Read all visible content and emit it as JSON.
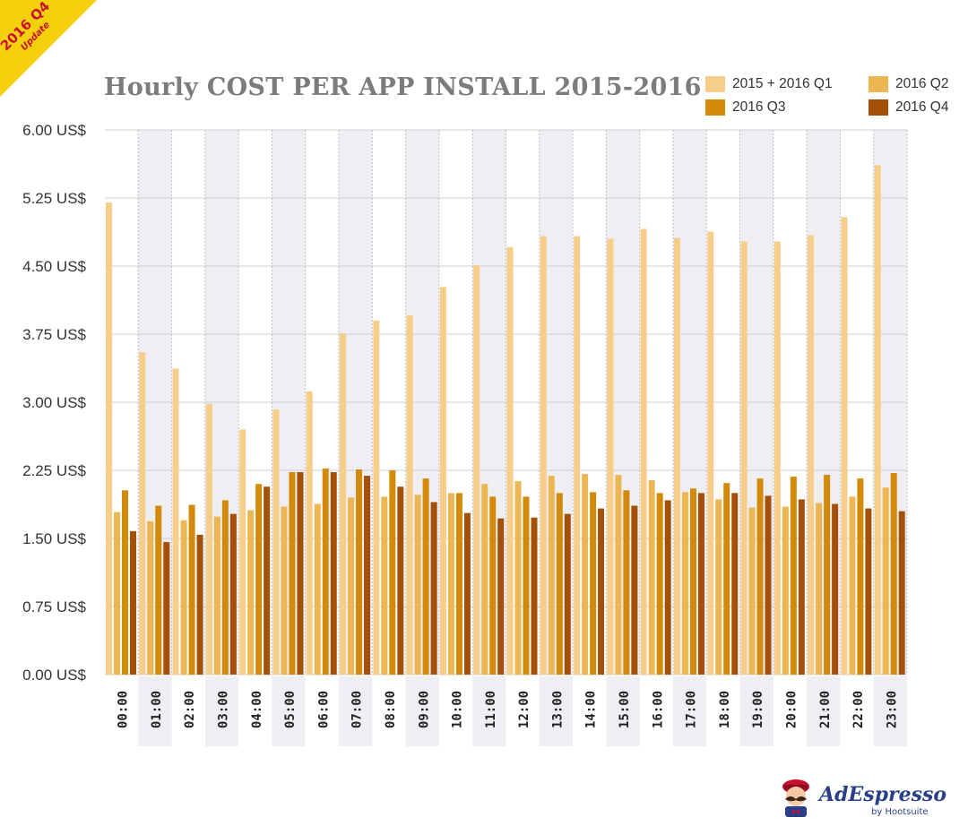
{
  "badge": {
    "line1": "2016 Q4",
    "line2": "Update"
  },
  "logo": {
    "name": "AdEspresso",
    "byline": "by Hootsuite"
  },
  "colors": {
    "series": [
      "#f7cd8a",
      "#ecb653",
      "#d28a08",
      "#a45009"
    ],
    "band": "#efeef2",
    "grid": "#cfcfcf",
    "badge": "#f5d10d",
    "badge_text": "#c8102e",
    "logo_text": "#2a3f8a",
    "title": "#7c7c7c"
  },
  "chart_data": {
    "type": "bar",
    "title": "Hourly COST PER APP INSTALL 2015-2016",
    "xlabel": "",
    "ylabel": "",
    "ylim": [
      0,
      6
    ],
    "y_ticks": [
      "0.00 US$",
      "0.75 US$",
      "1.50 US$",
      "2.25 US$",
      "3.00 US$",
      "3.75 US$",
      "4.50 US$",
      "5.25 US$",
      "6.00 US$"
    ],
    "y_tick_values": [
      0,
      0.75,
      1.5,
      2.25,
      3.0,
      3.75,
      4.5,
      5.25,
      6.0
    ],
    "grid": true,
    "legend_position": "top-right",
    "categories": [
      "00:00",
      "01:00",
      "02:00",
      "03:00",
      "04:00",
      "05:00",
      "06:00",
      "07:00",
      "08:00",
      "09:00",
      "10:00",
      "11:00",
      "12:00",
      "13:00",
      "14:00",
      "15:00",
      "16:00",
      "17:00",
      "18:00",
      "19:00",
      "20:00",
      "21:00",
      "22:00",
      "23:00"
    ],
    "series": [
      {
        "name": "2015 + 2016 Q1",
        "values": [
          5.2,
          3.55,
          3.37,
          2.98,
          2.7,
          2.92,
          3.12,
          3.76,
          3.9,
          3.96,
          4.27,
          4.51,
          4.71,
          4.83,
          4.83,
          4.8,
          4.91,
          4.81,
          4.88,
          4.77,
          4.77,
          4.84,
          5.04,
          5.61
        ]
      },
      {
        "name": "2016 Q2",
        "values": [
          1.79,
          1.69,
          1.7,
          1.74,
          1.81,
          1.85,
          1.88,
          1.95,
          1.96,
          1.98,
          2.0,
          2.1,
          2.13,
          2.19,
          2.21,
          2.2,
          2.14,
          2.01,
          1.93,
          1.84,
          1.85,
          1.89,
          1.96,
          2.06
        ]
      },
      {
        "name": "2016 Q3",
        "values": [
          2.03,
          1.86,
          1.87,
          1.92,
          2.1,
          2.23,
          2.27,
          2.26,
          2.25,
          2.16,
          2.0,
          1.96,
          1.96,
          2.0,
          2.01,
          2.03,
          2.0,
          2.05,
          2.11,
          2.16,
          2.18,
          2.2,
          2.16,
          2.22
        ]
      },
      {
        "name": "2016 Q4",
        "values": [
          1.58,
          1.46,
          1.54,
          1.77,
          2.07,
          2.23,
          2.23,
          2.19,
          2.07,
          1.9,
          1.78,
          1.72,
          1.73,
          1.77,
          1.83,
          1.86,
          1.92,
          2.0,
          2.0,
          1.97,
          1.93,
          1.88,
          1.83,
          1.8
        ]
      }
    ]
  }
}
